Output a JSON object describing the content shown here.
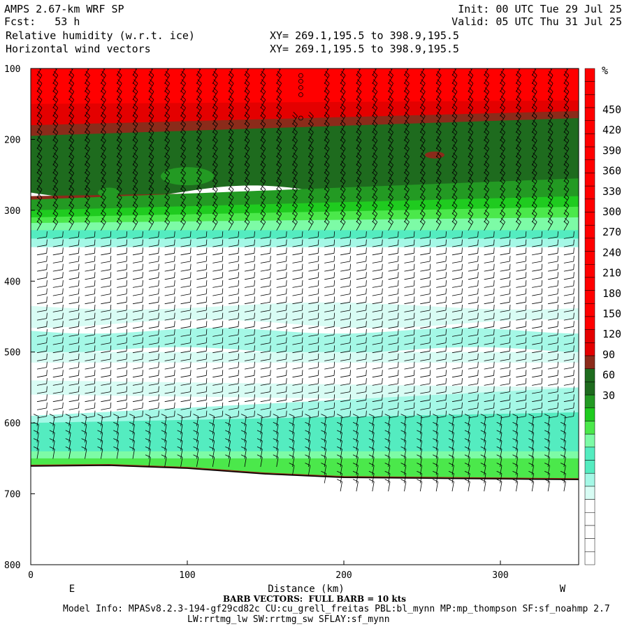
{
  "header": {
    "model": "AMPS 2.67-km WRF SP",
    "fcst": "Fcst:   53 h",
    "init": "Init: 00 UTC Tue 29 Jul 25",
    "valid": "Valid: 05 UTC Thu 31 Jul 25",
    "field1": "Relative humidity (w.r.t. ice)",
    "field2": "Horizontal wind vectors",
    "xy1": "XY= 269.1,195.5 to 398.9,195.5",
    "xy2": "XY= 269.1,195.5 to 398.9,195.5"
  },
  "footer": {
    "barb": "BARB VECTORS:  FULL BARB = 10 kts",
    "model_info": "Model Info: MPASv8.2.3-194-gf29cd82c CU:cu_grell_freitas PBL:bl_mynn MP:mp_thompson SF:sf_noahmp 2.7",
    "lw": "LW:rrtmg_lw SW:rrtmg_sw SFLAY:sf_mynn"
  },
  "chart_data": {
    "type": "heatmap",
    "xlabel": "Distance (km)",
    "x_left_label": "E",
    "x_right_label": "W",
    "xlim": [
      0,
      350
    ],
    "ylim": [
      100,
      800
    ],
    "x_ticks": [
      "0",
      "100",
      "200",
      "300"
    ],
    "y_ticks": [
      "100",
      "200",
      "300",
      "400",
      "500",
      "600",
      "700",
      "800"
    ],
    "colorbar": {
      "unit": "%",
      "labels": [
        "450",
        "420",
        "390",
        "360",
        "330",
        "300",
        "270",
        "240",
        "210",
        "180",
        "150",
        "120",
        "90",
        "60",
        "30"
      ],
      "colors": {
        "high": "#ff0000",
        "mid_red": "#e40000",
        "brown": "#8b2b1a",
        "dark_green": "#1e6b1e",
        "green": "#239a23",
        "bright_green": "#1fcb1f",
        "light_green": "#4be84b",
        "mint": "#7dfba6",
        "aqua": "#54ecc0",
        "pale_aqua": "#a4f8e6",
        "very_pale": "#d8fcf4",
        "white": "#ffffff"
      }
    },
    "terrain_pressure_hpa": [
      [
        0,
        661
      ],
      [
        50,
        660
      ],
      [
        100,
        664
      ],
      [
        150,
        672
      ],
      [
        200,
        677
      ],
      [
        250,
        678
      ],
      [
        300,
        679
      ],
      [
        350,
        680
      ]
    ],
    "rh_layers": [
      {
        "name": "red_top",
        "p_top": 100,
        "p_bottom": 185,
        "rh": 130
      },
      {
        "name": "dark_green",
        "p_top": 185,
        "p_bottom": 290,
        "rh": 100
      },
      {
        "name": "green_band",
        "p_top": 260,
        "p_bottom": 330,
        "rh": 80
      },
      {
        "name": "aqua_band",
        "p_top": 300,
        "p_bottom": 350,
        "rh": 50
      },
      {
        "name": "mid_aqua",
        "p_top": 440,
        "p_bottom": 510,
        "rh": 30
      },
      {
        "name": "low_aqua",
        "p_top": 560,
        "p_bottom": 660,
        "rh": 45
      }
    ]
  }
}
